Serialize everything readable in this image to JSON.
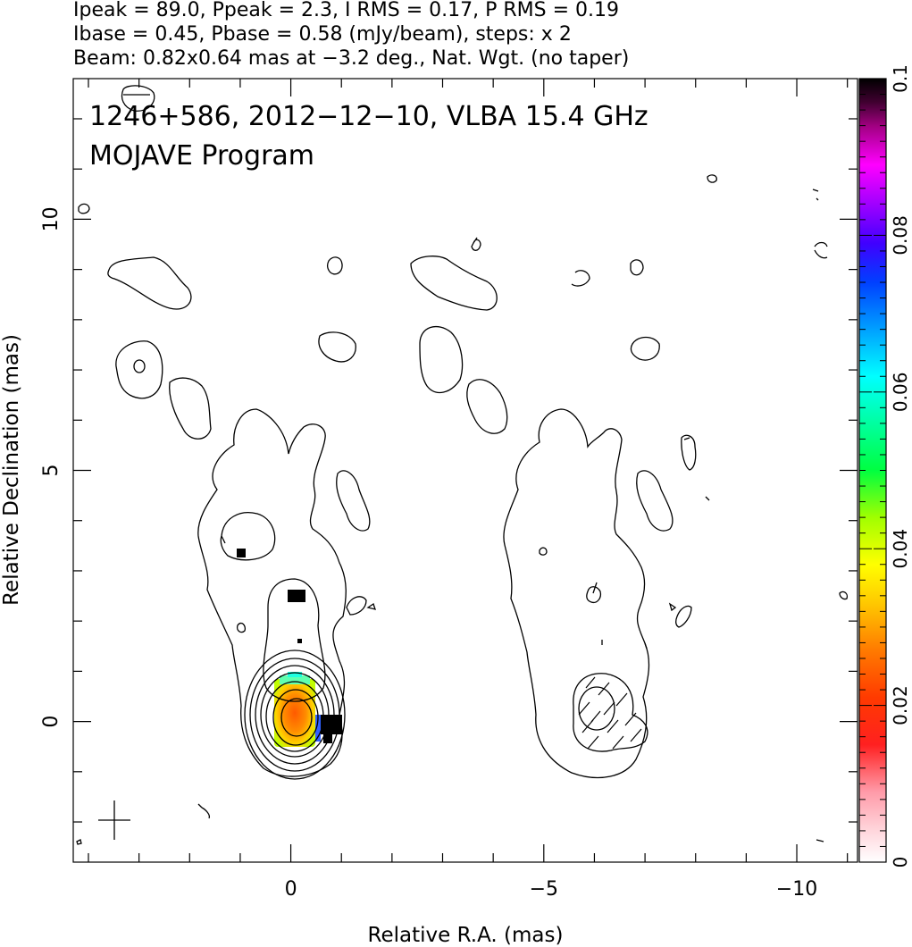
{
  "header": {
    "line1": "Ipeak = 89.0, Ppeak = 2.3, I RMS = 0.17, P RMS = 0.19",
    "line2": "Ibase = 0.45, Pbase = 0.58 (mJy/beam), steps: x 2",
    "line3": "Beam: 0.82x0.64 mas at −3.2 deg., Nat. Wgt. (no taper)"
  },
  "plot": {
    "title": "1246+586, 2012−12−10, VLBA 15.4 GHz",
    "subtitle": "MOJAVE Program"
  },
  "chart_data": {
    "type": "heatmap",
    "xlabel": "Relative R.A. (mas)",
    "ylabel": "Relative Declination (mas)",
    "xlim": [
      4.3,
      -11.2
    ],
    "ylim": [
      -2.8,
      12.8
    ],
    "x_ticks": [
      0,
      -5,
      -10
    ],
    "x_tick_labels": [
      "0",
      "−5",
      "−10"
    ],
    "y_ticks": [
      0,
      5,
      10
    ],
    "y_tick_labels": [
      "0",
      "5",
      "10"
    ],
    "colorbar": {
      "min": 0,
      "max": 0.1,
      "ticks": [
        0,
        0.02,
        0.04,
        0.06,
        0.08,
        0.1
      ],
      "tick_labels": [
        "0",
        "0.02",
        "0.04",
        "0.06",
        "0.08",
        "0.1"
      ]
    },
    "panels": [
      {
        "name": "Total intensity contours with fractional polarization color",
        "center_ra": 0
      },
      {
        "name": "Polarized intensity contours with EVPA sticks",
        "center_ra": -6
      }
    ],
    "core": {
      "ra": 0,
      "dec": 0
    },
    "beam": {
      "major_mas": 0.82,
      "minor_mas": 0.64,
      "pa_deg": -3.2
    },
    "contour_levels_mJy": [
      0.45,
      0.9,
      1.8,
      3.6,
      7.2,
      14.4,
      28.8,
      57.6
    ],
    "grid": false
  }
}
